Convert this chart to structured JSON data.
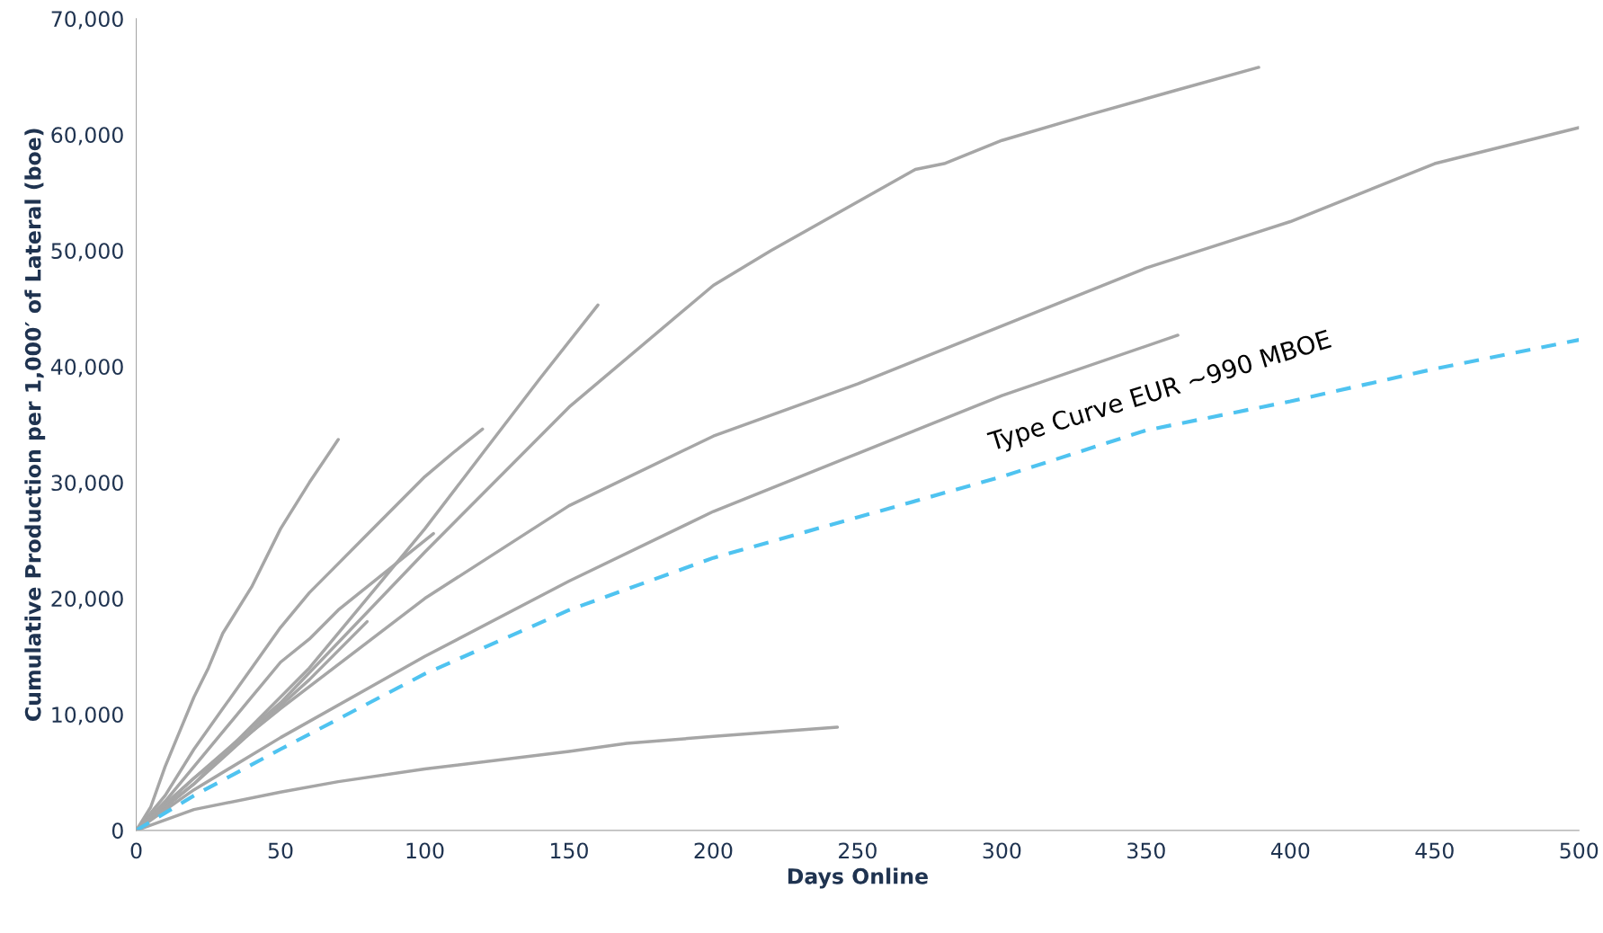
{
  "chart_data": {
    "type": "line",
    "xlabel": "Days Online",
    "ylabel": "Cumulative Production per 1,000′ of Lateral (boe)",
    "xlim": [
      0,
      500
    ],
    "ylim": [
      0,
      70000
    ],
    "xticks": [
      0,
      50,
      100,
      150,
      200,
      250,
      300,
      350,
      400,
      450,
      500
    ],
    "yticks": [
      0,
      {
        "value": 10000,
        "label": "10,000"
      },
      {
        "value": 20000,
        "label": "20,000"
      },
      {
        "value": 30000,
        "label": "30,000"
      },
      {
        "value": 40000,
        "label": "40,000"
      },
      {
        "value": 50000,
        "label": "50,000"
      },
      {
        "value": 60000,
        "label": "60,000"
      },
      {
        "value": 70000,
        "label": "70,000"
      }
    ],
    "grid": false,
    "legend": false,
    "marker": "none",
    "series": [
      {
        "color": "#a6a6a6",
        "line_style": "solid",
        "x": [
          0,
          5,
          10,
          15,
          20,
          25,
          30,
          40,
          50,
          60,
          70
        ],
        "values": [
          0,
          2000,
          5500,
          8500,
          11500,
          14000,
          17000,
          21000,
          26000,
          30000,
          33700
        ]
      },
      {
        "color": "#a6a6a6",
        "line_style": "solid",
        "x": [
          0,
          10,
          20,
          30,
          40,
          50,
          60,
          70,
          80,
          90,
          100,
          110,
          120
        ],
        "values": [
          0,
          3000,
          7000,
          10500,
          14000,
          17500,
          20500,
          23000,
          25500,
          28000,
          30500,
          32600,
          34600
        ]
      },
      {
        "color": "#a6a6a6",
        "line_style": "solid",
        "x": [
          0,
          10,
          20,
          30,
          40,
          50,
          60,
          70,
          80,
          90,
          103
        ],
        "values": [
          0,
          2500,
          5500,
          8500,
          11500,
          14500,
          16500,
          19000,
          21000,
          23000,
          25600
        ]
      },
      {
        "color": "#a6a6a6",
        "line_style": "solid",
        "x": [
          0,
          20,
          40,
          60,
          80,
          100,
          120,
          140,
          160
        ],
        "values": [
          0,
          4000,
          9000,
          14000,
          20000,
          26000,
          32500,
          39000,
          45300
        ]
      },
      {
        "color": "#a6a6a6",
        "line_style": "solid",
        "x": [
          0,
          20,
          40,
          60,
          80
        ],
        "values": [
          0,
          4000,
          8500,
          13000,
          18000
        ]
      },
      {
        "color": "#a6a6a6",
        "line_style": "solid",
        "x": [
          0,
          20,
          50,
          100,
          150,
          200,
          220,
          270,
          280,
          300,
          330,
          360,
          389
        ],
        "values": [
          0,
          4500,
          11000,
          24000,
          36500,
          47000,
          50000,
          57000,
          57500,
          59500,
          61700,
          63800,
          65800
        ]
      },
      {
        "color": "#a6a6a6",
        "line_style": "solid",
        "x": [
          0,
          20,
          50,
          100,
          150,
          200,
          250,
          300,
          350,
          400,
          450,
          500
        ],
        "values": [
          0,
          4500,
          10500,
          20000,
          28000,
          34000,
          38500,
          43500,
          48500,
          52500,
          57500,
          60600
        ]
      },
      {
        "color": "#a6a6a6",
        "line_style": "solid",
        "x": [
          0,
          20,
          50,
          100,
          150,
          200,
          250,
          300,
          361
        ],
        "values": [
          0,
          3500,
          8000,
          15000,
          21500,
          27500,
          32500,
          37500,
          42700
        ]
      },
      {
        "color": "#a6a6a6",
        "line_style": "solid",
        "x": [
          0,
          20,
          50,
          70,
          100,
          150,
          170,
          200,
          243
        ],
        "values": [
          0,
          1800,
          3300,
          4200,
          5300,
          6800,
          7500,
          8100,
          8900
        ]
      },
      {
        "color": "#4fc3f0",
        "line_style": "dashed",
        "x": [
          0,
          20,
          50,
          100,
          150,
          200,
          250,
          300,
          350,
          400,
          450,
          500
        ],
        "values": [
          0,
          3000,
          7000,
          13500,
          19000,
          23500,
          27000,
          30500,
          34500,
          37000,
          39800,
          42300
        ]
      }
    ],
    "annotations": [
      "Type Curve EUR ~990 MBOE"
    ]
  }
}
